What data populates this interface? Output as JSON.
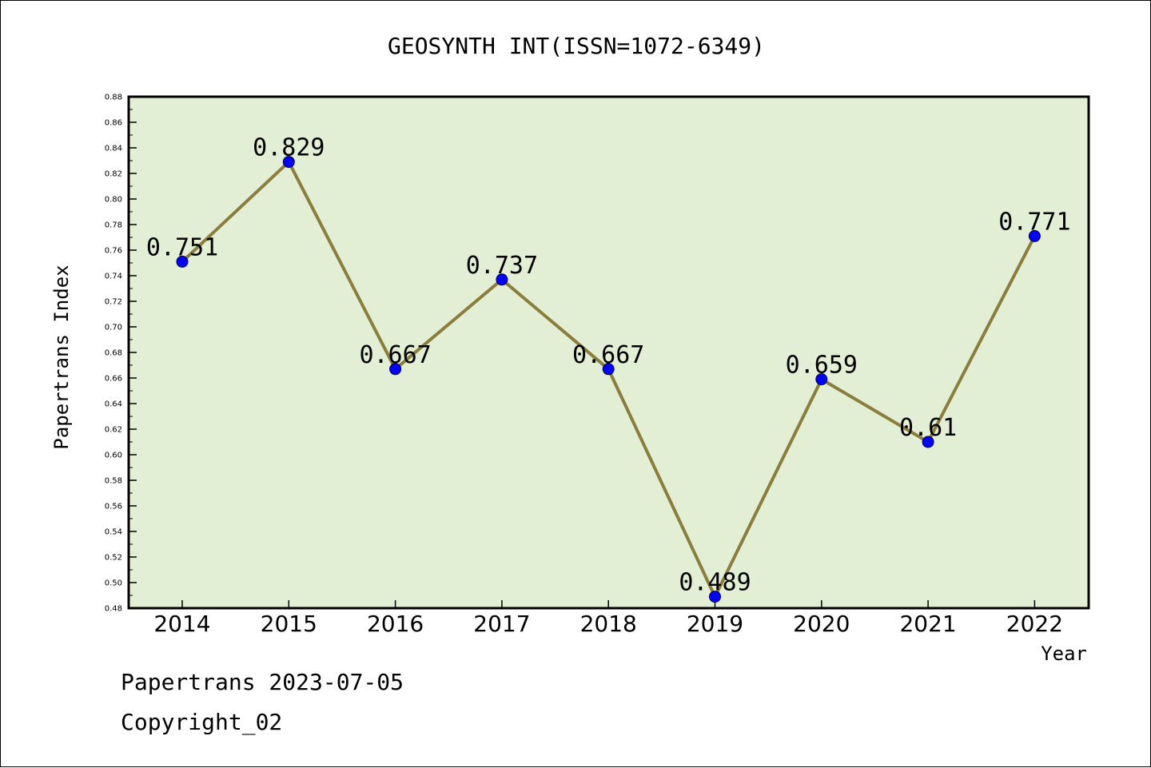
{
  "chart_data": {
    "type": "line",
    "title": "GEOSYNTH INT(ISSN=1072-6349)",
    "xlabel": "Year",
    "ylabel": "Papertrans Index",
    "categories": [
      "2014",
      "2015",
      "2016",
      "2017",
      "2018",
      "2019",
      "2020",
      "2021",
      "2022"
    ],
    "values": [
      0.751,
      0.829,
      0.667,
      0.737,
      0.667,
      0.489,
      0.659,
      0.61,
      0.771
    ],
    "data_labels": [
      "0.751",
      "0.829",
      "0.667",
      "0.737",
      "0.667",
      "0.489",
      "0.659",
      "0.61",
      "0.771"
    ],
    "ylim": [
      0.48,
      0.88
    ],
    "yticks": [
      "0.48",
      "0.50",
      "0.52",
      "0.54",
      "0.56",
      "0.58",
      "0.60",
      "0.62",
      "0.64",
      "0.66",
      "0.68",
      "0.70",
      "0.72",
      "0.74",
      "0.76",
      "0.78",
      "0.80",
      "0.82",
      "0.84",
      "0.86",
      "0.88"
    ],
    "grid": false,
    "colors": {
      "line": "#8b7d3a",
      "marker": "#0000ff",
      "plot_background": "#e2efd5"
    }
  },
  "footer": {
    "line1": "Papertrans 2023-07-05",
    "line2": "Copyright_02"
  }
}
